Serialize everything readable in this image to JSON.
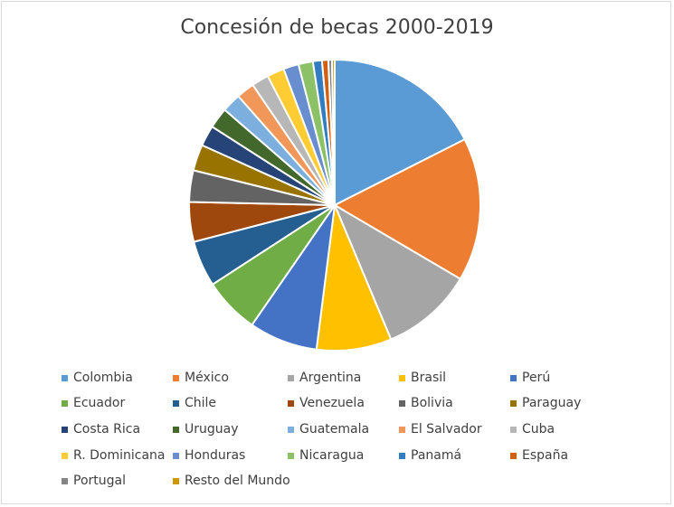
{
  "chart_data": {
    "type": "pie",
    "title": "Concesión de becas 2000-2019",
    "legend_position": "bottom",
    "slices": [
      {
        "label": "Colombia",
        "value": 17.5,
        "color": "#5b9bd5"
      },
      {
        "label": "México",
        "value": 15.9,
        "color": "#ed7d31"
      },
      {
        "label": "Argentina",
        "value": 10.2,
        "color": "#a5a5a5"
      },
      {
        "label": "Brasil",
        "value": 8.3,
        "color": "#ffc000"
      },
      {
        "label": "Perú",
        "value": 7.6,
        "color": "#4472c4"
      },
      {
        "label": "Ecuador",
        "value": 6.2,
        "color": "#70ad47"
      },
      {
        "label": "Chile",
        "value": 5.1,
        "color": "#255e91"
      },
      {
        "label": "Venezuela",
        "value": 4.4,
        "color": "#9e480e"
      },
      {
        "label": "Bolivia",
        "value": 3.5,
        "color": "#636363"
      },
      {
        "label": "Paraguay",
        "value": 2.9,
        "color": "#997300"
      },
      {
        "label": "Costa Rica",
        "value": 2.3,
        "color": "#264478"
      },
      {
        "label": "Uruguay",
        "value": 2.3,
        "color": "#43682b"
      },
      {
        "label": "Guatemala",
        "value": 2.1,
        "color": "#7cafdd"
      },
      {
        "label": "El Salvador",
        "value": 2.0,
        "color": "#f1975a"
      },
      {
        "label": "Cuba",
        "value": 1.9,
        "color": "#b7b7b7"
      },
      {
        "label": "R. Dominicana",
        "value": 1.9,
        "color": "#ffcd33"
      },
      {
        "label": "Honduras",
        "value": 1.7,
        "color": "#698ed0"
      },
      {
        "label": "Nicaragua",
        "value": 1.6,
        "color": "#8cc168"
      },
      {
        "label": "Panamá",
        "value": 1.0,
        "color": "#327dc2"
      },
      {
        "label": "España",
        "value": 0.7,
        "color": "#d26012"
      },
      {
        "label": "Portugal",
        "value": 0.4,
        "color": "#848484"
      },
      {
        "label": "Resto del Mundo",
        "value": 0.3,
        "color": "#cc9a00"
      }
    ]
  }
}
